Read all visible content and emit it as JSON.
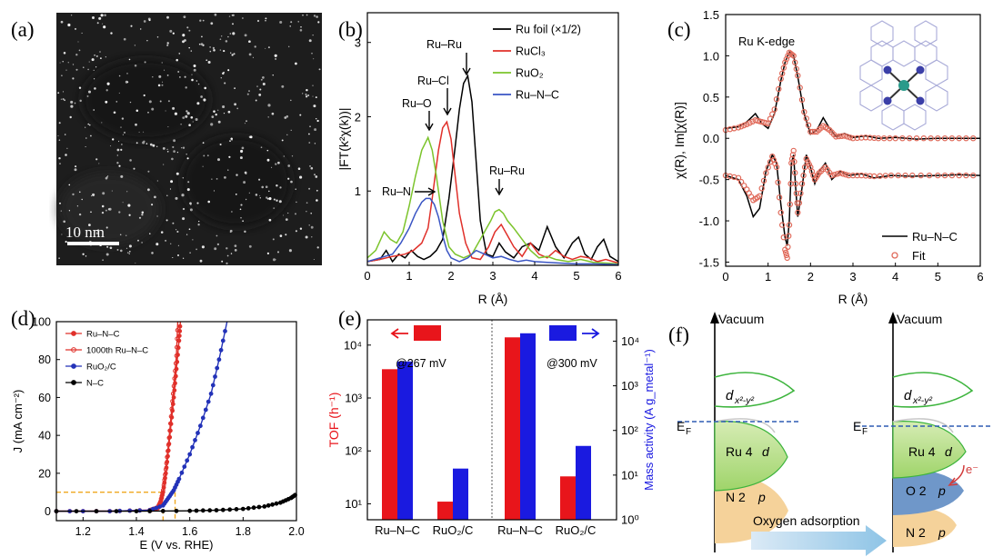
{
  "figure": {
    "panel_labels": [
      "(a)",
      "(b)",
      "(c)",
      "(d)",
      "(e)",
      "(f)"
    ],
    "panel_a": {
      "type": "electron-micrograph",
      "scale_bar_label": "10 nm"
    },
    "panel_c_inset": "Ru K-edge",
    "panel_e_annotations": [
      "@267 mV",
      "@300 mV"
    ],
    "panel_f": {
      "type": "energy-diagram",
      "vacuum_label": "Vacuum",
      "fermi_label": "E",
      "fermi_subscript": "F",
      "orbital_d_label": "d",
      "orbital_d_subscript": "x²-y²",
      "ru4d_label": "Ru 4",
      "ru4d_italic": "d",
      "n2p_label": "N 2",
      "o2p_label": "O 2",
      "p_italic": "p",
      "electron_label": "e⁻",
      "arrow_label": "Oxygen adsorption",
      "colors": {
        "d_orbital": "#3cb43c",
        "ru4d": "#b9df8a",
        "n2p": "#f5d29a",
        "o2p": "#6f97c9",
        "fermi": "#2e5bb4",
        "electron_arrow": "#d23c3c"
      }
    }
  },
  "chart_data": [
    {
      "panel": "b",
      "type": "line",
      "xlabel": "R (Å)",
      "ylabel": "|FT(k²χ(k))|",
      "xlim": [
        0,
        6
      ],
      "ylim": [
        0,
        3.4
      ],
      "xticks": [
        "0",
        "1",
        "2",
        "3",
        "4",
        "5",
        "6"
      ],
      "yticks": [
        "1",
        "2",
        "3"
      ],
      "grid": false,
      "legend": "top-right",
      "annotations": [
        "Ru–Ru",
        "Ru–Cl",
        "Ru–O",
        "Ru–N",
        "Ru–Ru"
      ],
      "series": [
        {
          "name": "Ru foil (×1/2)",
          "color": "#000000",
          "x": [
            0,
            0.3,
            0.45,
            0.6,
            0.75,
            0.9,
            1.05,
            1.2,
            1.35,
            1.5,
            1.65,
            1.8,
            1.95,
            2.1,
            2.2,
            2.3,
            2.4,
            2.5,
            2.6,
            2.7,
            2.85,
            3.0,
            3.15,
            3.3,
            3.5,
            3.7,
            3.9,
            4.1,
            4.3,
            4.5,
            4.7,
            4.9,
            5.05,
            5.2,
            5.35,
            5.5,
            5.65,
            5.8,
            6.0
          ],
          "y": [
            0.05,
            0.08,
            0.2,
            0.05,
            0.15,
            0.1,
            0.2,
            0.12,
            0.08,
            0.12,
            0.2,
            0.35,
            0.9,
            1.6,
            2.1,
            2.45,
            2.55,
            2.2,
            1.4,
            0.6,
            0.15,
            0.12,
            0.3,
            0.18,
            0.1,
            0.25,
            0.3,
            0.2,
            0.52,
            0.25,
            0.1,
            0.3,
            0.38,
            0.15,
            0.08,
            0.25,
            0.35,
            0.12,
            0.05
          ]
        },
        {
          "name": "RuCl₃",
          "color": "#e0302a",
          "x": [
            0,
            0.3,
            0.6,
            0.9,
            1.1,
            1.3,
            1.45,
            1.55,
            1.7,
            1.8,
            1.9,
            2.0,
            2.1,
            2.2,
            2.35,
            2.5,
            2.7,
            2.9,
            3.05,
            3.2,
            3.35,
            3.5,
            3.7,
            3.9,
            4.1,
            4.3,
            4.5,
            4.7,
            4.9,
            5.1,
            5.3,
            5.5,
            5.7,
            6.0
          ],
          "y": [
            0.05,
            0.08,
            0.12,
            0.15,
            0.2,
            0.3,
            0.5,
            0.9,
            1.55,
            1.85,
            1.93,
            1.7,
            1.2,
            0.7,
            0.3,
            0.1,
            0.08,
            0.25,
            0.45,
            0.55,
            0.4,
            0.25,
            0.12,
            0.3,
            0.15,
            0.1,
            0.2,
            0.12,
            0.08,
            0.12,
            0.1,
            0.05,
            0.08,
            0.03
          ]
        },
        {
          "name": "RuO₂",
          "color": "#7cc42c",
          "x": [
            0,
            0.2,
            0.4,
            0.55,
            0.7,
            0.85,
            1.0,
            1.15,
            1.3,
            1.45,
            1.55,
            1.65,
            1.8,
            1.95,
            2.1,
            2.3,
            2.5,
            2.65,
            2.8,
            2.95,
            3.05,
            3.15,
            3.25,
            3.35,
            3.5,
            3.7,
            3.9,
            4.1,
            4.3,
            4.5,
            4.8,
            5.1,
            5.4,
            5.7,
            6.0
          ],
          "y": [
            0.1,
            0.2,
            0.45,
            0.35,
            0.3,
            0.45,
            0.8,
            1.2,
            1.55,
            1.72,
            1.55,
            1.2,
            0.6,
            0.25,
            0.15,
            0.1,
            0.15,
            0.3,
            0.45,
            0.6,
            0.72,
            0.75,
            0.7,
            0.6,
            0.5,
            0.35,
            0.2,
            0.1,
            0.12,
            0.08,
            0.05,
            0.08,
            0.04,
            0.03,
            0.02
          ]
        },
        {
          "name": "Ru–N–C",
          "color": "#3a55c4",
          "x": [
            0,
            0.3,
            0.6,
            0.8,
            1.0,
            1.15,
            1.3,
            1.4,
            1.5,
            1.6,
            1.7,
            1.8,
            1.9,
            2.0,
            2.2,
            2.4,
            2.6,
            2.8,
            3.0,
            3.2,
            3.4,
            3.6,
            3.8,
            4.0,
            4.3,
            4.6,
            5.0,
            5.4,
            6.0
          ],
          "y": [
            0.05,
            0.1,
            0.15,
            0.3,
            0.5,
            0.7,
            0.85,
            0.9,
            0.9,
            0.82,
            0.65,
            0.4,
            0.2,
            0.1,
            0.05,
            0.1,
            0.2,
            0.15,
            0.1,
            0.12,
            0.08,
            0.05,
            0.07,
            0.05,
            0.04,
            0.03,
            0.02,
            0.02,
            0.01
          ]
        }
      ]
    },
    {
      "panel": "c",
      "type": "line",
      "xlabel": "R (Å)",
      "ylabel": "χ(R), Im[χ(R)]",
      "xlim": [
        0,
        6
      ],
      "ylim": [
        -1.55,
        1.5
      ],
      "xticks": [
        "0",
        "1",
        "2",
        "3",
        "4",
        "5",
        "6"
      ],
      "yticks": [
        "-1.5",
        "-1.0",
        "-0.5",
        "0.0",
        "0.5",
        "1.0",
        "1.5"
      ],
      "grid": false,
      "legend": "bottom-right",
      "series": [
        {
          "name": "Ru–N–C",
          "color": "#000000",
          "x": [
            0,
            0.3,
            0.5,
            0.7,
            0.85,
            1.0,
            1.15,
            1.3,
            1.4,
            1.5,
            1.6,
            1.7,
            1.85,
            2.0,
            2.15,
            2.3,
            2.45,
            2.6,
            2.8,
            3.0,
            3.3,
            3.6,
            4.0,
            4.5,
            5.0,
            5.5,
            6.0
          ],
          "y": [
            0.12,
            0.14,
            0.2,
            0.3,
            0.18,
            0.12,
            0.3,
            0.7,
            0.92,
            1.05,
            1.0,
            0.75,
            0.3,
            0.05,
            0.1,
            0.25,
            0.12,
            0.02,
            0.06,
            0.01,
            0.03,
            0.0,
            0.01,
            -0.01,
            0.0,
            0.0,
            0.0
          ]
        },
        {
          "name": "Fit",
          "color": "#e06a5a",
          "x": [
            0,
            0.3,
            0.5,
            0.7,
            0.85,
            1.0,
            1.15,
            1.3,
            1.4,
            1.5,
            1.6,
            1.7,
            1.85,
            2.0,
            2.15,
            2.3,
            2.45,
            2.6,
            2.8,
            3.0,
            3.3,
            3.6,
            4.0,
            4.5,
            5.0,
            5.5,
            6.0
          ],
          "y": [
            0.1,
            0.13,
            0.17,
            0.22,
            0.2,
            0.18,
            0.35,
            0.72,
            0.92,
            1.04,
            1.0,
            0.76,
            0.32,
            0.08,
            0.08,
            0.15,
            0.1,
            0.02,
            0.03,
            0.0,
            0.01,
            0.0,
            0.0,
            0.0,
            0.0,
            0.0,
            0.0
          ]
        },
        {
          "name": "Ru–N–C Im",
          "color": "#000000",
          "x": [
            0,
            0.3,
            0.5,
            0.65,
            0.8,
            0.95,
            1.1,
            1.2,
            1.3,
            1.4,
            1.45,
            1.5,
            1.55,
            1.6,
            1.65,
            1.7,
            1.8,
            1.9,
            2.0,
            2.1,
            2.2,
            2.35,
            2.5,
            2.7,
            2.9,
            3.2,
            3.5,
            3.9,
            4.4,
            5.0,
            5.5,
            6.0
          ],
          "y": [
            -0.45,
            -0.5,
            -0.7,
            -0.95,
            -0.85,
            -0.4,
            -0.2,
            -0.3,
            -0.8,
            -1.2,
            -1.3,
            -1.0,
            -0.3,
            -0.2,
            -0.6,
            -0.95,
            -0.6,
            -0.2,
            -0.35,
            -0.55,
            -0.4,
            -0.3,
            -0.5,
            -0.4,
            -0.45,
            -0.43,
            -0.48,
            -0.45,
            -0.46,
            -0.45,
            -0.44,
            -0.45
          ]
        },
        {
          "name": "Fit Im",
          "color": "#e06a5a",
          "x": [
            0,
            0.3,
            0.5,
            0.65,
            0.8,
            0.95,
            1.1,
            1.2,
            1.3,
            1.4,
            1.45,
            1.5,
            1.55,
            1.6,
            1.65,
            1.7,
            1.8,
            1.9,
            2.0,
            2.1,
            2.2,
            2.35,
            2.5,
            2.7,
            2.9,
            3.2,
            3.5,
            3.9,
            4.4,
            5.0,
            5.5,
            6.0
          ],
          "y": [
            -0.45,
            -0.48,
            -0.62,
            -0.75,
            -0.7,
            -0.42,
            -0.22,
            -0.35,
            -0.9,
            -1.35,
            -1.45,
            -1.05,
            -0.3,
            -0.15,
            -0.55,
            -0.9,
            -0.55,
            -0.25,
            -0.35,
            -0.5,
            -0.42,
            -0.35,
            -0.45,
            -0.42,
            -0.45,
            -0.45,
            -0.46,
            -0.45,
            -0.45,
            -0.45,
            -0.45,
            -0.45
          ]
        }
      ]
    },
    {
      "panel": "d",
      "type": "line",
      "xlabel": "E (V vs. RHE)",
      "ylabel": "J (mA cm⁻²)",
      "xlim": [
        1.1,
        2.0
      ],
      "ylim": [
        -5,
        100
      ],
      "xticks": [
        "1.2",
        "1.4",
        "1.6",
        "1.8",
        "2.0"
      ],
      "yticks": [
        "0",
        "20",
        "40",
        "60",
        "80",
        "100"
      ],
      "grid": false,
      "legend": "top-left",
      "guide_J": 10,
      "series": [
        {
          "name": "Ru–N–C",
          "color": "#e0302a",
          "x": [
            1.1,
            1.3,
            1.45,
            1.48,
            1.49,
            1.5,
            1.51,
            1.52,
            1.53,
            1.54,
            1.55,
            1.56,
            1.565
          ],
          "y": [
            0,
            0,
            0.5,
            1.5,
            4,
            10,
            20,
            32,
            46,
            60,
            75,
            90,
            100
          ]
        },
        {
          "name": "1000th Ru–N–C",
          "color": "#e0302a",
          "x": [
            1.1,
            1.3,
            1.45,
            1.48,
            1.49,
            1.5,
            1.51,
            1.52,
            1.53,
            1.54,
            1.55,
            1.555
          ],
          "y": [
            0,
            0,
            0.6,
            2,
            5,
            11,
            22,
            35,
            50,
            66,
            82,
            100
          ]
        },
        {
          "name": "RuO₂/C",
          "color": "#2332b8",
          "x": [
            1.1,
            1.3,
            1.45,
            1.5,
            1.52,
            1.54,
            1.56,
            1.6,
            1.64,
            1.68,
            1.71,
            1.74
          ],
          "y": [
            0,
            0,
            0.5,
            3,
            7,
            11,
            17,
            30,
            45,
            62,
            80,
            100
          ]
        },
        {
          "name": "N–C",
          "color": "#000000",
          "x": [
            1.1,
            1.4,
            1.6,
            1.7,
            1.8,
            1.88,
            1.94,
            1.98,
            2.0
          ],
          "y": [
            0,
            0,
            0.2,
            0.5,
            1.2,
            2.5,
            4.5,
            7,
            9
          ]
        }
      ]
    },
    {
      "panel": "e",
      "type": "bar",
      "categories": [
        "Ru–N–C",
        "RuO₂/C",
        "Ru–N–C",
        "RuO₂/C"
      ],
      "ylabel": "TOF (h⁻¹)",
      "ylabel_right": "Mass activity (A g_metal⁻¹)",
      "yscale": "log",
      "ylim": [
        5,
        30000
      ],
      "ylim_right": [
        1,
        30000
      ],
      "yticks_left": [
        "10¹",
        "10²",
        "10³",
        "10⁴"
      ],
      "yticks_right": [
        "10⁰",
        "10¹",
        "10²",
        "10³",
        "10⁴"
      ],
      "grid": false,
      "series": [
        {
          "name": "TOF",
          "color": "#e8151b",
          "values": [
            3500,
            11,
            14000,
            33
          ]
        },
        {
          "name": "Mass activity",
          "color": "#1a1ae0",
          "values": [
            3500,
            14,
            15000,
            45
          ]
        }
      ]
    }
  ]
}
